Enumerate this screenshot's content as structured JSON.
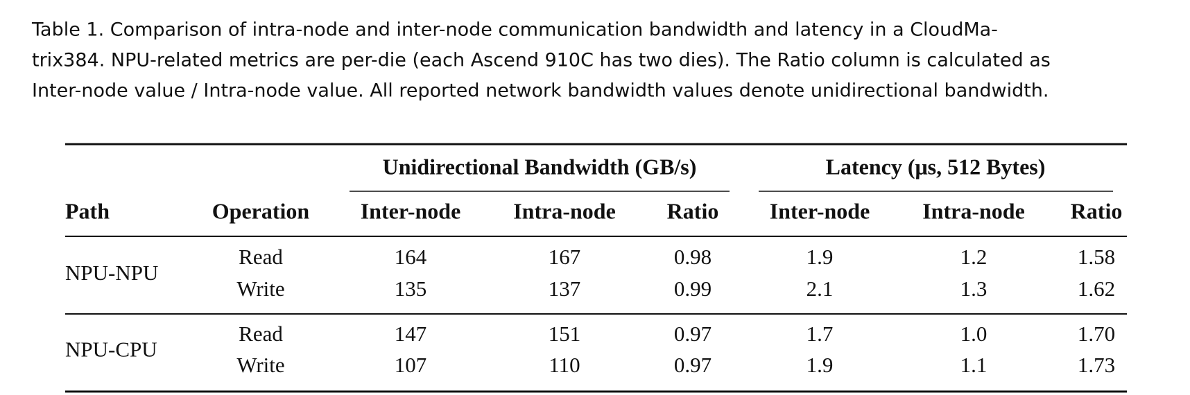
{
  "caption": {
    "lines": [
      "Table 1.  Comparison of intra-node and inter-node communication bandwidth and latency in a CloudMa-",
      "trix384. NPU-related metrics are per-die (each Ascend 910C has two dies). The Ratio column is calculated as",
      "Inter-node value / Intra-node value. All reported network bandwidth values denote unidirectional bandwidth."
    ]
  },
  "table": {
    "groups": [
      "Unidirectional Bandwidth (GB/s)",
      "Latency (μs, 512 Bytes)"
    ],
    "columns": [
      "Path",
      "Operation",
      "Inter-node",
      "Intra-node",
      "Ratio",
      "Inter-node",
      "Intra-node",
      "Ratio"
    ],
    "sections": [
      {
        "path": "NPU-NPU",
        "rows": [
          [
            "Read",
            "164",
            "167",
            "0.98",
            "1.9",
            "1.2",
            "1.58"
          ],
          [
            "Write",
            "135",
            "137",
            "0.99",
            "2.1",
            "1.3",
            "1.62"
          ]
        ]
      },
      {
        "path": "NPU-CPU",
        "rows": [
          [
            "Read",
            "147",
            "151",
            "0.97",
            "1.7",
            "1.0",
            "1.70"
          ],
          [
            "Write",
            "107",
            "110",
            "0.97",
            "1.9",
            "1.1",
            "1.73"
          ]
        ]
      }
    ]
  }
}
